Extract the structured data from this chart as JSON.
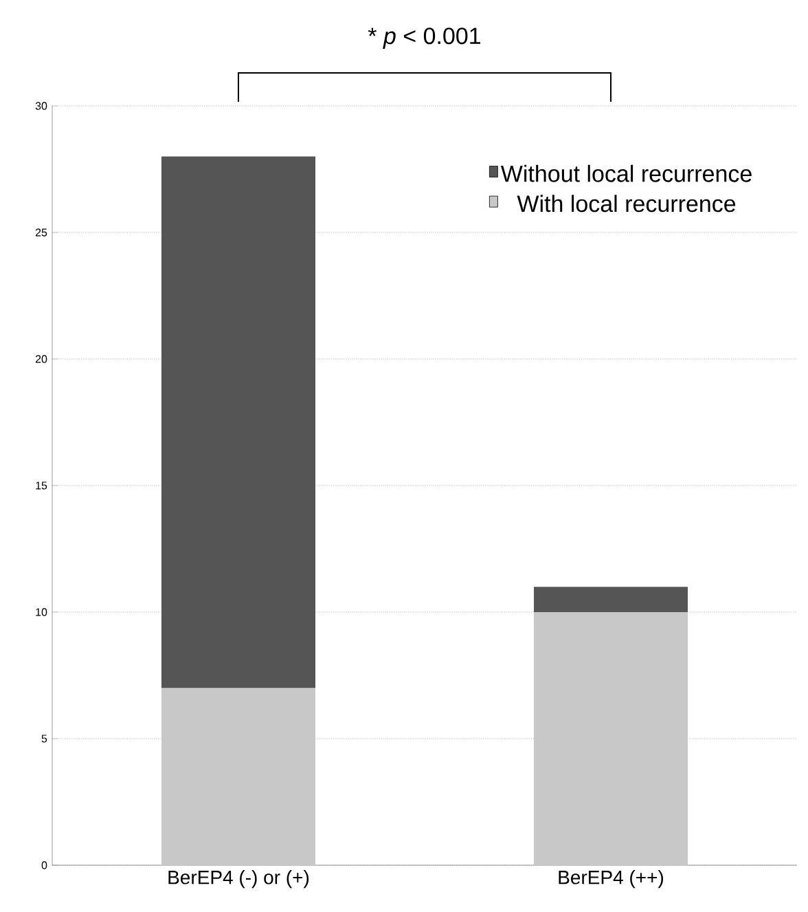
{
  "chart_data": {
    "type": "bar",
    "stacked": true,
    "categories": [
      "BerEP4 (-) or (+)",
      "BerEP4 (++)"
    ],
    "series": [
      {
        "name": "With local recurrence",
        "color": "#c8c8c8",
        "values": [
          7,
          10
        ]
      },
      {
        "name": "Without local recurrence",
        "color": "#555555",
        "values": [
          21,
          1
        ]
      }
    ],
    "ylim": [
      0,
      30
    ],
    "yticks": [
      0,
      5,
      10,
      15,
      20,
      25,
      30
    ],
    "grid": "y",
    "legend": "top right",
    "annotations": [
      "* *p* < 0.001"
    ]
  }
}
